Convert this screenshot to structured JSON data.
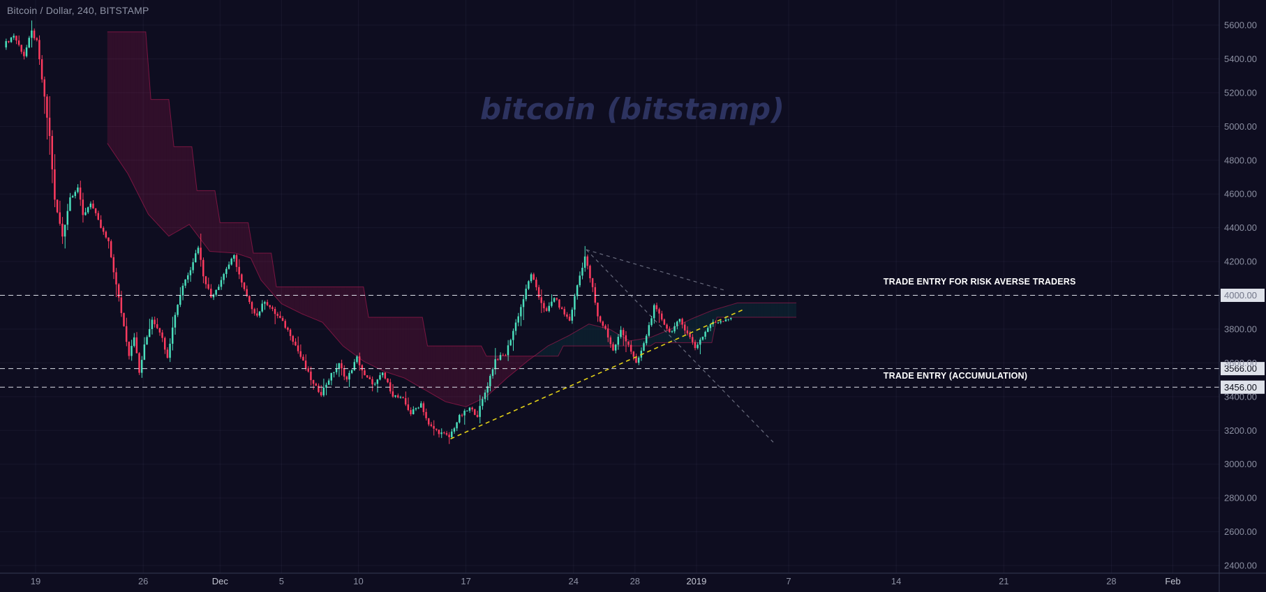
{
  "header": {
    "symbol_title": "Bitcoin / Dollar, 240, BITSTAMP"
  },
  "colors": {
    "background": "#0e0d20",
    "grid": "rgba(150,160,210,0.07)",
    "axis_line": "#363b54",
    "axis_text": "#8c90a2",
    "axis_text_major": "#c2c5d1",
    "candle_up": "#4be0bd",
    "candle_down": "#ff3b5f",
    "cloud_bear_fill": "rgba(233,30,99,0.16)",
    "cloud_bull_fill": "rgba(0,180,160,0.10)",
    "cloud_outline": "rgba(233,30,99,0.45)",
    "dashed_level_line": "#dfe2ea",
    "badge_bg": "#dfe2ea",
    "badge_text": "#0d0f1a",
    "watermark_text": "#2d3360",
    "annotation_text": "#ffffff",
    "trendline_yellow": "#e3d117",
    "trendline_gray": "rgba(165,170,188,0.6)"
  },
  "chart_data": {
    "type": "candlestick",
    "title": "bitcoin (bitstamp)",
    "symbol": "Bitcoin / Dollar",
    "interval": "240",
    "exchange": "BITSTAMP",
    "y_axis": {
      "min": 2400,
      "max": 5600,
      "tick_step": 200,
      "labels": [
        "5600.00",
        "5400.00",
        "5200.00",
        "5000.00",
        "4800.00",
        "4600.00",
        "4400.00",
        "4200.00",
        "4000.00",
        "3800.00",
        "3600.00",
        "3400.00",
        "3200.00",
        "3000.00",
        "2800.00",
        "2600.00",
        "2400.00"
      ]
    },
    "x_axis": {
      "ticks": [
        {
          "i": 12,
          "label": "19",
          "major": false
        },
        {
          "i": 54,
          "label": "26",
          "major": false
        },
        {
          "i": 84,
          "label": "Dec",
          "major": true
        },
        {
          "i": 108,
          "label": "5",
          "major": false
        },
        {
          "i": 138,
          "label": "10",
          "major": false
        },
        {
          "i": 180,
          "label": "17",
          "major": false
        },
        {
          "i": 222,
          "label": "24",
          "major": false
        },
        {
          "i": 246,
          "label": "28",
          "major": false
        },
        {
          "i": 270,
          "label": "2019",
          "major": true
        },
        {
          "i": 306,
          "label": "7",
          "major": false
        },
        {
          "i": 348,
          "label": "14",
          "major": false
        },
        {
          "i": 390,
          "label": "21",
          "major": false
        },
        {
          "i": 432,
          "label": "28",
          "major": false
        },
        {
          "i": 456,
          "label": "Feb",
          "major": true
        }
      ]
    },
    "candles_total": 284,
    "price_path": [
      [
        0,
        5480
      ],
      [
        4,
        5540
      ],
      [
        8,
        5420
      ],
      [
        11,
        5560
      ],
      [
        13,
        5500
      ],
      [
        15,
        5280
      ],
      [
        18,
        4940
      ],
      [
        20,
        4560
      ],
      [
        23,
        4350
      ],
      [
        26,
        4580
      ],
      [
        29,
        4640
      ],
      [
        31,
        4470
      ],
      [
        34,
        4550
      ],
      [
        38,
        4400
      ],
      [
        41,
        4310
      ],
      [
        44,
        4060
      ],
      [
        46,
        3900
      ],
      [
        49,
        3650
      ],
      [
        51,
        3760
      ],
      [
        53,
        3540
      ],
      [
        55,
        3700
      ],
      [
        58,
        3860
      ],
      [
        61,
        3790
      ],
      [
        64,
        3640
      ],
      [
        67,
        3890
      ],
      [
        70,
        4060
      ],
      [
        73,
        4160
      ],
      [
        76,
        4290
      ],
      [
        78,
        4120
      ],
      [
        81,
        3990
      ],
      [
        84,
        4060
      ],
      [
        87,
        4160
      ],
      [
        90,
        4230
      ],
      [
        93,
        4070
      ],
      [
        96,
        3950
      ],
      [
        99,
        3880
      ],
      [
        102,
        3970
      ],
      [
        105,
        3910
      ],
      [
        108,
        3860
      ],
      [
        112,
        3770
      ],
      [
        115,
        3670
      ],
      [
        118,
        3570
      ],
      [
        121,
        3470
      ],
      [
        124,
        3420
      ],
      [
        128,
        3530
      ],
      [
        131,
        3590
      ],
      [
        134,
        3500
      ],
      [
        138,
        3630
      ],
      [
        141,
        3520
      ],
      [
        145,
        3470
      ],
      [
        148,
        3540
      ],
      [
        152,
        3410
      ],
      [
        156,
        3380
      ],
      [
        159,
        3300
      ],
      [
        163,
        3360
      ],
      [
        166,
        3230
      ],
      [
        170,
        3190
      ],
      [
        174,
        3160
      ],
      [
        178,
        3280
      ],
      [
        182,
        3330
      ],
      [
        185,
        3290
      ],
      [
        189,
        3470
      ],
      [
        192,
        3620
      ],
      [
        196,
        3650
      ],
      [
        199,
        3790
      ],
      [
        202,
        3930
      ],
      [
        206,
        4130
      ],
      [
        209,
        3990
      ],
      [
        212,
        3900
      ],
      [
        215,
        3990
      ],
      [
        218,
        3910
      ],
      [
        221,
        3850
      ],
      [
        224,
        4060
      ],
      [
        227,
        4230
      ],
      [
        230,
        4040
      ],
      [
        232,
        3870
      ],
      [
        235,
        3800
      ],
      [
        238,
        3670
      ],
      [
        241,
        3790
      ],
      [
        244,
        3710
      ],
      [
        247,
        3590
      ],
      [
        250,
        3710
      ],
      [
        254,
        3930
      ],
      [
        257,
        3860
      ],
      [
        260,
        3780
      ],
      [
        264,
        3850
      ],
      [
        267,
        3780
      ],
      [
        270,
        3690
      ],
      [
        273,
        3760
      ],
      [
        276,
        3830
      ],
      [
        280,
        3850
      ],
      [
        284,
        3870
      ]
    ],
    "ichimoku_cloud": {
      "start": 40,
      "end": 309,
      "senkou_a": [
        [
          40,
          4900
        ],
        [
          48,
          4720
        ],
        [
          56,
          4480
        ],
        [
          64,
          4350
        ],
        [
          72,
          4420
        ],
        [
          80,
          4260
        ],
        [
          90,
          4250
        ],
        [
          96,
          4220
        ],
        [
          100,
          4090
        ],
        [
          108,
          3950
        ],
        [
          116,
          3890
        ],
        [
          124,
          3840
        ],
        [
          132,
          3700
        ],
        [
          140,
          3610
        ],
        [
          148,
          3550
        ],
        [
          156,
          3510
        ],
        [
          164,
          3440
        ],
        [
          172,
          3370
        ],
        [
          180,
          3340
        ],
        [
          188,
          3400
        ],
        [
          196,
          3510
        ],
        [
          204,
          3610
        ],
        [
          212,
          3700
        ],
        [
          220,
          3760
        ],
        [
          228,
          3830
        ],
        [
          236,
          3800
        ],
        [
          244,
          3730
        ],
        [
          252,
          3750
        ],
        [
          260,
          3800
        ],
        [
          268,
          3860
        ],
        [
          276,
          3910
        ],
        [
          286,
          3955
        ],
        [
          309,
          3955
        ]
      ],
      "senkou_b": [
        [
          40,
          5560
        ],
        [
          55,
          5560
        ],
        [
          57,
          5160
        ],
        [
          64,
          5160
        ],
        [
          66,
          4880
        ],
        [
          73,
          4880
        ],
        [
          75,
          4620
        ],
        [
          82,
          4620
        ],
        [
          84,
          4430
        ],
        [
          95,
          4430
        ],
        [
          97,
          4250
        ],
        [
          104,
          4250
        ],
        [
          106,
          4050
        ],
        [
          140,
          4050
        ],
        [
          142,
          3870
        ],
        [
          163,
          3870
        ],
        [
          165,
          3700
        ],
        [
          186,
          3700
        ],
        [
          188,
          3640
        ],
        [
          216,
          3640
        ],
        [
          218,
          3700
        ],
        [
          252,
          3700
        ],
        [
          254,
          3720
        ],
        [
          276,
          3720
        ],
        [
          278,
          3870
        ],
        [
          309,
          3870
        ]
      ]
    },
    "horizontal_lines": [
      {
        "price": 4000,
        "label": "4000.00"
      },
      {
        "price": 3566,
        "label": "3566.00"
      },
      {
        "price": 3456,
        "label": "3456.00"
      }
    ],
    "trendlines": [
      {
        "name": "support-trendline-yellow",
        "from": [
          174,
          3150
        ],
        "to": [
          289,
          3920
        ],
        "color_key": "trendline_yellow",
        "width": 1.6,
        "dash": "6 5"
      },
      {
        "name": "resistance-trendline-gray",
        "from": [
          227,
          4270
        ],
        "to": [
          281,
          4030
        ],
        "color_key": "trendline_gray",
        "width": 1.2,
        "dash": "5 5"
      },
      {
        "name": "breakdown-trendline-gray",
        "from": [
          227,
          4270
        ],
        "to": [
          300,
          3130
        ],
        "color_key": "trendline_gray",
        "width": 1.2,
        "dash": "5 5"
      }
    ],
    "annotations": [
      {
        "text": "TRADE ENTRY FOR RISK AVERSE TRADERS",
        "i": 343,
        "price": 4076
      },
      {
        "text": "TRADE ENTRY (ACCUMULATION)",
        "i": 343,
        "price": 3520
      }
    ]
  }
}
